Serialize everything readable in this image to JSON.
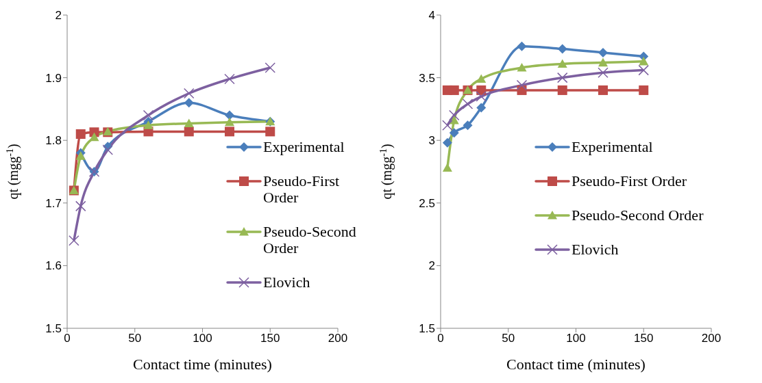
{
  "chart_data": [
    {
      "type": "line",
      "xlabel": "Contact time (minutes)",
      "ylabel": "qt (mgg$^{-1}$)",
      "x": [
        5,
        10,
        20,
        30,
        60,
        90,
        120,
        150
      ],
      "xlim": [
        0,
        200
      ],
      "xticks": [
        0,
        50,
        100,
        150,
        200
      ],
      "ylim": [
        1.5,
        2
      ],
      "yticks": [
        1.5,
        1.6,
        1.7,
        1.8,
        1.9,
        2
      ],
      "grid": false,
      "legend": "right",
      "line_style": "solid",
      "series": [
        {
          "name": "Experimental",
          "color": "#4a7ebb",
          "marker": "diamond",
          "values": [
            null,
            1.78,
            1.75,
            1.79,
            1.83,
            1.86,
            1.84,
            1.83
          ]
        },
        {
          "name": "Pseudo-First Order",
          "color": "#be4b48",
          "marker": "square",
          "values": [
            1.72,
            1.81,
            1.813,
            1.813,
            1.814,
            1.814,
            1.814,
            1.814
          ]
        },
        {
          "name": "Pseudo-Second Order",
          "color": "#98b954",
          "marker": "triangle",
          "values": [
            1.72,
            1.775,
            1.805,
            1.814,
            1.824,
            1.827,
            1.829,
            1.83
          ]
        },
        {
          "name": "Elovich",
          "color": "#7d60a0",
          "marker": "cross",
          "values": [
            1.64,
            1.695,
            1.75,
            1.785,
            1.84,
            1.875,
            1.898,
            1.916
          ]
        }
      ]
    },
    {
      "type": "line",
      "xlabel": "Contact time (minutes)",
      "ylabel": "qt (mgg$^{-1}$)",
      "x": [
        5,
        10,
        20,
        30,
        60,
        90,
        120,
        150
      ],
      "xlim": [
        0,
        200
      ],
      "xticks": [
        0,
        50,
        100,
        150,
        200
      ],
      "ylim": [
        1.5,
        4
      ],
      "yticks": [
        1.5,
        2,
        2.5,
        3,
        3.5,
        4
      ],
      "grid": false,
      "legend": "right",
      "line_style": "solid",
      "series": [
        {
          "name": "Experimental",
          "color": "#4a7ebb",
          "marker": "diamond",
          "values": [
            2.98,
            3.06,
            3.12,
            3.26,
            3.75,
            3.73,
            3.7,
            3.67
          ]
        },
        {
          "name": "Pseudo-First Order",
          "color": "#be4b48",
          "marker": "square",
          "values": [
            3.4,
            3.4,
            3.4,
            3.4,
            3.4,
            3.4,
            3.4,
            3.4
          ]
        },
        {
          "name": "Pseudo-Second Order",
          "color": "#98b954",
          "marker": "triangle",
          "values": [
            2.78,
            3.16,
            3.4,
            3.49,
            3.58,
            3.61,
            3.62,
            3.63
          ]
        },
        {
          "name": "Elovich",
          "color": "#7d60a0",
          "marker": "cross",
          "values": [
            3.12,
            3.2,
            3.29,
            3.35,
            3.44,
            3.5,
            3.54,
            3.56
          ]
        }
      ]
    }
  ]
}
